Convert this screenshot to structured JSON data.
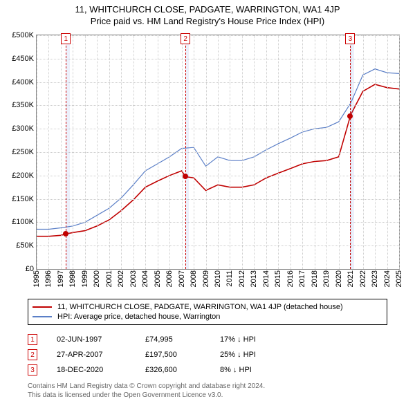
{
  "title_main": "11, WHITCHURCH CLOSE, PADGATE, WARRINGTON, WA1 4JP",
  "title_sub": "Price paid vs. HM Land Registry's House Price Index (HPI)",
  "chart": {
    "type": "line",
    "x_years": [
      1995,
      1996,
      1997,
      1998,
      1999,
      2000,
      2001,
      2002,
      2003,
      2004,
      2005,
      2006,
      2007,
      2008,
      2009,
      2010,
      2011,
      2012,
      2013,
      2014,
      2015,
      2016,
      2017,
      2018,
      2019,
      2020,
      2021,
      2022,
      2023,
      2024,
      2025
    ],
    "y_ticks": [
      0,
      50000,
      100000,
      150000,
      200000,
      250000,
      300000,
      350000,
      400000,
      450000,
      500000
    ],
    "y_labels": [
      "£0",
      "£50K",
      "£100K",
      "£150K",
      "£200K",
      "£250K",
      "£300K",
      "£350K",
      "£400K",
      "£450K",
      "£500K"
    ],
    "grid_color": "#cccccc",
    "band_color": "rgba(99,132,220,0.12)",
    "bands": [
      {
        "from": 1997.42,
        "width_years": 0.3
      },
      {
        "from": 2007.32,
        "width_years": 0.3
      },
      {
        "from": 2020.96,
        "width_years": 0.3
      }
    ],
    "markers": [
      {
        "n": "1",
        "x": 1997.42,
        "y": 74995,
        "dot_color": "#c00000"
      },
      {
        "n": "2",
        "x": 2007.32,
        "y": 197500,
        "dot_color": "#c00000"
      },
      {
        "n": "3",
        "x": 2020.96,
        "y": 326600,
        "dot_color": "#c00000"
      }
    ],
    "series": [
      {
        "name": "11, WHITCHURCH CLOSE, PADGATE, WARRINGTON, WA1 4JP (detached house)",
        "color": "#c00000",
        "width": 1.6,
        "points": [
          [
            1995,
            70000
          ],
          [
            1996,
            70000
          ],
          [
            1997,
            72000
          ],
          [
            1997.42,
            74995
          ],
          [
            1998,
            78000
          ],
          [
            1999,
            82000
          ],
          [
            2000,
            92000
          ],
          [
            2001,
            105000
          ],
          [
            2002,
            125000
          ],
          [
            2003,
            148000
          ],
          [
            2004,
            175000
          ],
          [
            2005,
            188000
          ],
          [
            2006,
            200000
          ],
          [
            2007,
            210000
          ],
          [
            2007.32,
            197500
          ],
          [
            2008,
            195000
          ],
          [
            2009,
            168000
          ],
          [
            2010,
            180000
          ],
          [
            2011,
            175000
          ],
          [
            2012,
            175000
          ],
          [
            2013,
            180000
          ],
          [
            2014,
            195000
          ],
          [
            2015,
            205000
          ],
          [
            2016,
            215000
          ],
          [
            2017,
            225000
          ],
          [
            2018,
            230000
          ],
          [
            2019,
            232000
          ],
          [
            2020,
            240000
          ],
          [
            2020.96,
            326600
          ],
          [
            2021,
            330000
          ],
          [
            2022,
            380000
          ],
          [
            2023,
            395000
          ],
          [
            2024,
            388000
          ],
          [
            2025,
            385000
          ]
        ]
      },
      {
        "name": "HPI: Average price, detached house, Warrington",
        "color": "#5b7fc7",
        "width": 1.2,
        "points": [
          [
            1995,
            85000
          ],
          [
            1996,
            85000
          ],
          [
            1997,
            88000
          ],
          [
            1998,
            92000
          ],
          [
            1999,
            100000
          ],
          [
            2000,
            115000
          ],
          [
            2001,
            130000
          ],
          [
            2002,
            152000
          ],
          [
            2003,
            180000
          ],
          [
            2004,
            210000
          ],
          [
            2005,
            225000
          ],
          [
            2006,
            240000
          ],
          [
            2007,
            258000
          ],
          [
            2008,
            260000
          ],
          [
            2009,
            220000
          ],
          [
            2010,
            240000
          ],
          [
            2011,
            232000
          ],
          [
            2012,
            232000
          ],
          [
            2013,
            240000
          ],
          [
            2014,
            255000
          ],
          [
            2015,
            268000
          ],
          [
            2016,
            280000
          ],
          [
            2017,
            293000
          ],
          [
            2018,
            300000
          ],
          [
            2019,
            303000
          ],
          [
            2020,
            315000
          ],
          [
            2021,
            355000
          ],
          [
            2022,
            415000
          ],
          [
            2023,
            428000
          ],
          [
            2024,
            420000
          ],
          [
            2025,
            418000
          ]
        ]
      }
    ]
  },
  "legend": [
    {
      "label": "11, WHITCHURCH CLOSE, PADGATE, WARRINGTON, WA1 4JP (detached house)",
      "color": "#c00000"
    },
    {
      "label": "HPI: Average price, detached house, Warrington",
      "color": "#5b7fc7"
    }
  ],
  "sales": [
    {
      "n": "1",
      "date": "02-JUN-1997",
      "price": "£74,995",
      "diff": "17% ↓ HPI"
    },
    {
      "n": "2",
      "date": "27-APR-2007",
      "price": "£197,500",
      "diff": "25% ↓ HPI"
    },
    {
      "n": "3",
      "date": "18-DEC-2020",
      "price": "£326,600",
      "diff": "8% ↓ HPI"
    }
  ],
  "footer1": "Contains HM Land Registry data © Crown copyright and database right 2024.",
  "footer2": "This data is licensed under the Open Government Licence v3.0."
}
